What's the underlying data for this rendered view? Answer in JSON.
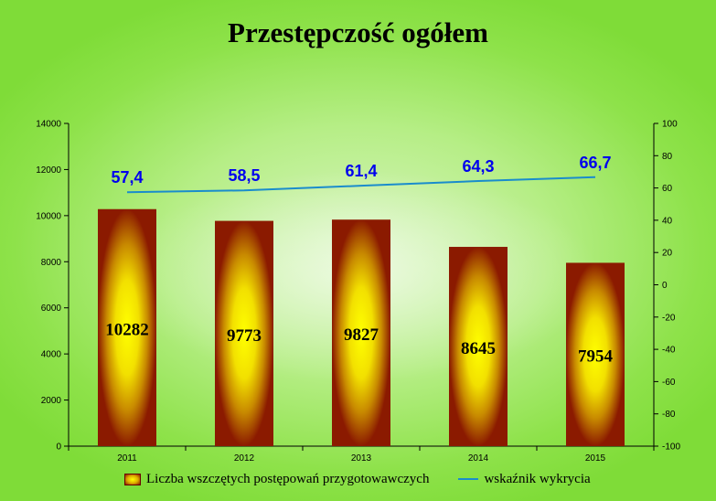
{
  "chart_data": {
    "type": "bar",
    "title": "Przestępczość ogółem",
    "categories": [
      "2011",
      "2012",
      "2013",
      "2014",
      "2015"
    ],
    "series": [
      {
        "name": "Liczba wszczętych postępowań przygotowawczych",
        "type": "bar",
        "axis": "left",
        "values": [
          10282,
          9773,
          9827,
          8645,
          7954
        ],
        "labels": [
          "10282",
          "9773",
          "9827",
          "8645",
          "7954"
        ]
      },
      {
        "name": "wskaźnik wykrycia",
        "type": "line",
        "axis": "right",
        "values": [
          57.4,
          58.5,
          61.4,
          64.3,
          66.7
        ],
        "labels": [
          "57,4",
          "58,5",
          "61,4",
          "64,3",
          "66,7"
        ]
      }
    ],
    "ylim_left": [
      0,
      14000
    ],
    "yticks_left": [
      "0",
      "2000",
      "4000",
      "6000",
      "8000",
      "10000",
      "12000",
      "14000"
    ],
    "ylim_right": [
      -100,
      100
    ],
    "yticks_right": [
      "-100",
      "-80",
      "-60",
      "-40",
      "-20",
      "0",
      "20",
      "40",
      "60",
      "80",
      "100"
    ],
    "grid": false,
    "legend": "bottom",
    "colors": {
      "bar_center": "#ffff00",
      "bar_edge": "#8b1a00",
      "line": "#1a8ccc",
      "line_labels": "#0000ee"
    }
  }
}
